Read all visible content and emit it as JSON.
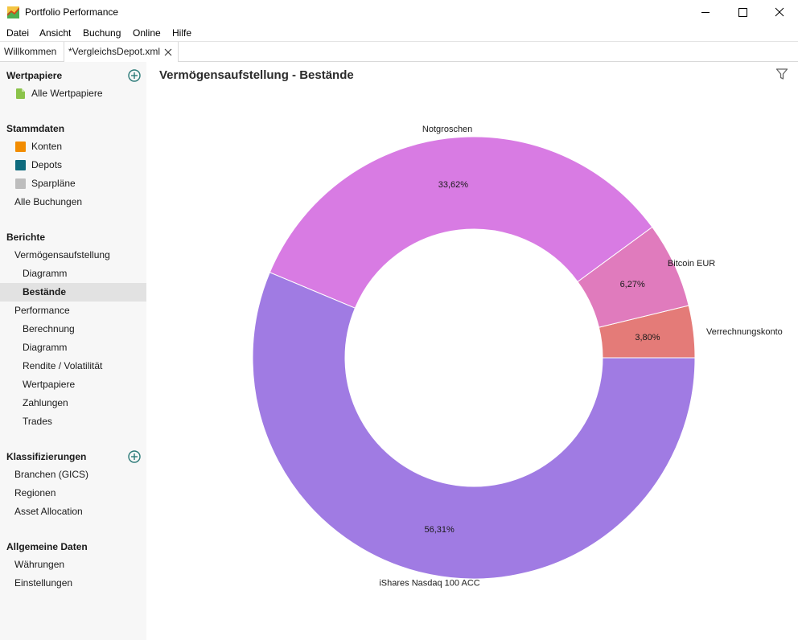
{
  "window": {
    "title": "Portfolio Performance",
    "icon": "portfolio-performance-logo"
  },
  "menu": [
    "Datei",
    "Ansicht",
    "Buchung",
    "Online",
    "Hilfe"
  ],
  "tabs": [
    {
      "label": "Willkommen"
    },
    {
      "label": "*VergleichsDepot.xml",
      "close_icon": "close-icon"
    }
  ],
  "sidebar": {
    "wertpapiere": {
      "heading": "Wertpapiere",
      "items": [
        "Alle Wertpapiere"
      ]
    },
    "stammdaten": {
      "heading": "Stammdaten",
      "items": [
        "Konten",
        "Depots",
        "Sparpläne",
        "Alle Buchungen"
      ]
    },
    "berichte": {
      "heading": "Berichte",
      "items": [
        "Vermögensaufstellung",
        "Diagramm",
        "Bestände",
        "Performance",
        "Berechnung",
        "Diagramm",
        "Rendite / Volatilität",
        "Wertpapiere",
        "Zahlungen",
        "Trades"
      ]
    },
    "klassifizierungen": {
      "heading": "Klassifizierungen",
      "items": [
        "Branchen (GICS)",
        "Regionen",
        "Asset Allocation"
      ]
    },
    "allgemein": {
      "heading": "Allgemeine Daten",
      "items": [
        "Währungen",
        "Einstellungen"
      ]
    },
    "colors": {
      "konten": "#f28c00",
      "depots": "#0e6b7e",
      "sparplaene": "#bdbdbd",
      "wertpapiere": "#8bc34a"
    }
  },
  "view": {
    "title": "Vermögensaufstellung - Bestände",
    "filter_icon": "filter-icon"
  },
  "chart_data": {
    "type": "pie",
    "donut": true,
    "legend": "labels-outside",
    "slices": [
      {
        "label": "Verrechnungskonto",
        "value": 3.8,
        "value_label": "3,80%",
        "color": "#e47b78"
      },
      {
        "label": "Bitcoin EUR",
        "value": 6.27,
        "value_label": "6,27%",
        "color": "#e07bbd"
      },
      {
        "label": "Notgroschen",
        "value": 33.62,
        "value_label": "33,62%",
        "color": "#d87be3"
      },
      {
        "label": "iShares Nasdaq 100 ACC",
        "value": 56.31,
        "value_label": "56,31%",
        "color": "#a07be3"
      }
    ]
  }
}
